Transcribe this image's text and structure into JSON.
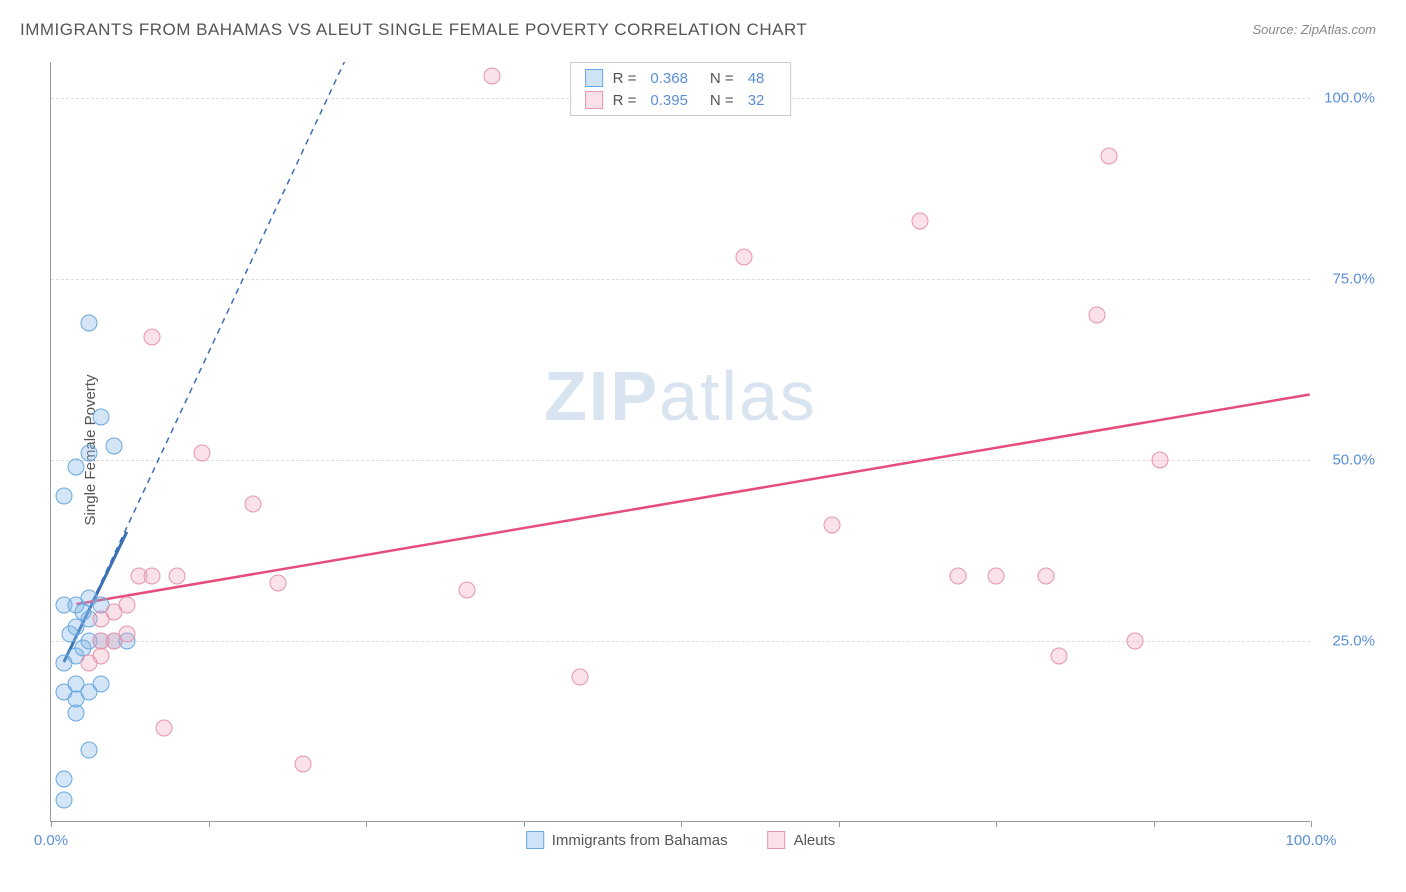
{
  "title": "IMMIGRANTS FROM BAHAMAS VS ALEUT SINGLE FEMALE POVERTY CORRELATION CHART",
  "source": "Source: ZipAtlas.com",
  "y_axis_label": "Single Female Poverty",
  "watermark_bold": "ZIP",
  "watermark_light": "atlas",
  "chart": {
    "type": "scatter",
    "xlim": [
      0,
      100
    ],
    "ylim": [
      0,
      105
    ],
    "y_ticks": [
      25,
      50,
      75,
      100
    ],
    "y_tick_labels": [
      "25.0%",
      "50.0%",
      "75.0%",
      "100.0%"
    ],
    "x_ticks": [
      0,
      12.5,
      25,
      37.5,
      50,
      62.5,
      75,
      87.5,
      100
    ],
    "x_tick_labels_visible": {
      "0": "0.0%",
      "100": "100.0%"
    },
    "background_color": "#ffffff",
    "grid_color": "#dddddd",
    "axis_color": "#999999",
    "tick_label_color": "#5a8fd6",
    "tick_label_fontsize": 15
  },
  "series": [
    {
      "name": "Immigrants from Bahamas",
      "color_fill": "rgba(130,180,230,0.35)",
      "color_border": "#6aa8e0",
      "swatch_fill": "#cfe3f7",
      "swatch_border": "#6aa8e0",
      "r": "0.368",
      "n": "48",
      "trend": {
        "x1": 1,
        "y1": 22,
        "x2": 6,
        "y2": 40,
        "extend_x2": 30,
        "extend_y2": 130,
        "color": "#3a6fb5",
        "dash": true
      },
      "points": [
        [
          1,
          3
        ],
        [
          1,
          6
        ],
        [
          3,
          10
        ],
        [
          2,
          15
        ],
        [
          2,
          17
        ],
        [
          1,
          18
        ],
        [
          2,
          19
        ],
        [
          3,
          18
        ],
        [
          4,
          19
        ],
        [
          1,
          22
        ],
        [
          2,
          23
        ],
        [
          2.5,
          24
        ],
        [
          3,
          25
        ],
        [
          4,
          25
        ],
        [
          5,
          25
        ],
        [
          6,
          25
        ],
        [
          1.5,
          26
        ],
        [
          2,
          27
        ],
        [
          3,
          28
        ],
        [
          2.5,
          29
        ],
        [
          1,
          30
        ],
        [
          2,
          30
        ],
        [
          3,
          31
        ],
        [
          4,
          30
        ],
        [
          1,
          45
        ],
        [
          2,
          49
        ],
        [
          3,
          51
        ],
        [
          5,
          52
        ],
        [
          4,
          56
        ],
        [
          3,
          69
        ]
      ]
    },
    {
      "name": "Aleuts",
      "color_fill": "rgba(240,160,180,0.3)",
      "color_border": "#e895af",
      "swatch_fill": "#fbe0e8",
      "swatch_border": "#e895af",
      "r": "0.395",
      "n": "32",
      "trend": {
        "x1": 2,
        "y1": 30,
        "x2": 100,
        "y2": 59,
        "color": "#e54d7a",
        "dash": false
      },
      "points": [
        [
          3,
          22
        ],
        [
          4,
          23
        ],
        [
          4,
          25
        ],
        [
          5,
          25
        ],
        [
          6,
          26
        ],
        [
          4,
          28
        ],
        [
          5,
          29
        ],
        [
          6,
          30
        ],
        [
          7,
          34
        ],
        [
          8,
          34
        ],
        [
          9,
          13
        ],
        [
          10,
          34
        ],
        [
          16,
          44
        ],
        [
          12,
          51
        ],
        [
          8,
          67
        ],
        [
          18,
          33
        ],
        [
          20,
          8
        ],
        [
          33,
          32
        ],
        [
          35,
          103
        ],
        [
          42,
          20
        ],
        [
          55,
          78
        ],
        [
          62,
          41
        ],
        [
          69,
          83
        ],
        [
          72,
          34
        ],
        [
          75,
          34
        ],
        [
          79,
          34
        ],
        [
          80,
          23
        ],
        [
          83,
          70
        ],
        [
          84,
          92
        ],
        [
          86,
          25
        ],
        [
          88,
          50
        ]
      ]
    }
  ],
  "legend_top_template": {
    "r_label": "R =",
    "n_label": "N ="
  },
  "legend_bottom": [
    {
      "label": "Immigrants from Bahamas",
      "fill": "#cfe3f7",
      "border": "#6aa8e0"
    },
    {
      "label": "Aleuts",
      "fill": "#fbe0e8",
      "border": "#e895af"
    }
  ]
}
